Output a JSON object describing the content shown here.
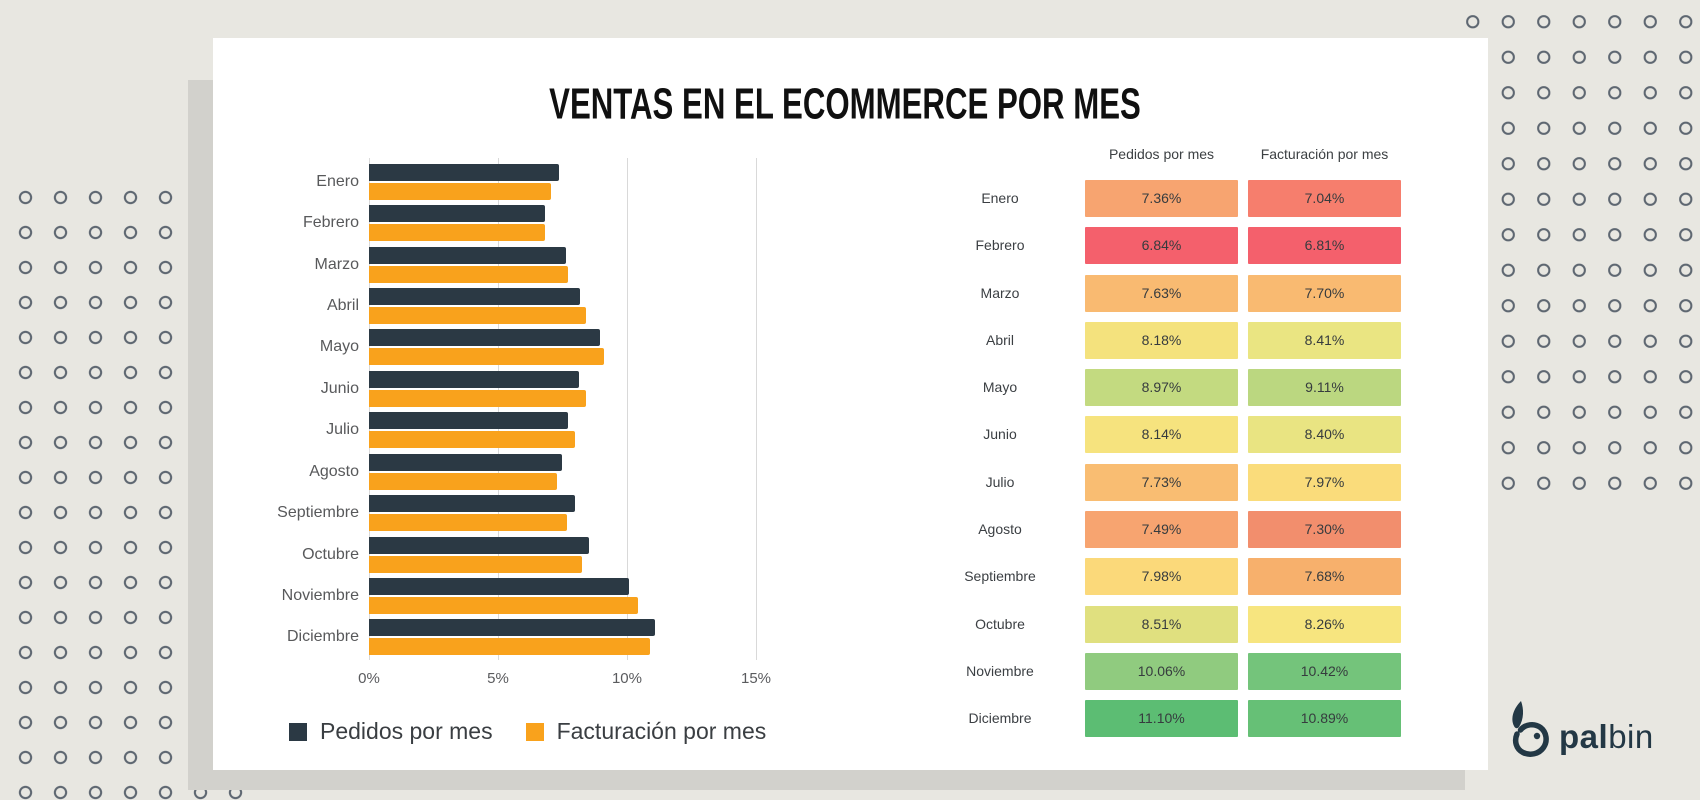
{
  "chart_data": {
    "type": "bar",
    "orientation": "horizontal",
    "title": "VENTAS EN EL ECOMMERCE POR MES",
    "categories": [
      "Enero",
      "Febrero",
      "Marzo",
      "Abril",
      "Mayo",
      "Junio",
      "Julio",
      "Agosto",
      "Septiembre",
      "Octubre",
      "Noviembre",
      "Diciembre"
    ],
    "series": [
      {
        "name": "Pedidos por mes",
        "color": "#2B3944",
        "values": [
          7.36,
          6.84,
          7.63,
          8.18,
          8.97,
          8.14,
          7.73,
          7.49,
          7.98,
          8.51,
          10.06,
          11.1
        ]
      },
      {
        "name": "Facturación por mes",
        "color": "#F9A21C",
        "values": [
          7.04,
          6.81,
          7.7,
          8.41,
          9.11,
          8.4,
          7.97,
          7.3,
          7.68,
          8.26,
          10.42,
          10.89
        ]
      }
    ],
    "x_ticks": [
      "0%",
      "5%",
      "10%",
      "15%"
    ],
    "xlim": [
      0,
      15
    ],
    "grid": true,
    "legend_position": "bottom-left"
  },
  "table": {
    "columns": [
      "Pedidos por mes",
      "Facturación por mes"
    ],
    "rows": [
      {
        "month": "Enero",
        "pedidos": "7.36%",
        "pedidos_color": "#F7A470",
        "facturacion": "7.04%",
        "facturacion_color": "#F67E6D"
      },
      {
        "month": "Febrero",
        "pedidos": "6.84%",
        "pedidos_color": "#F4606C",
        "facturacion": "6.81%",
        "facturacion_color": "#F4606C"
      },
      {
        "month": "Marzo",
        "pedidos": "7.63%",
        "pedidos_color": "#F9BA71",
        "facturacion": "7.70%",
        "facturacion_color": "#F9BA71"
      },
      {
        "month": "Abril",
        "pedidos": "8.18%",
        "pedidos_color": "#F4E27D",
        "facturacion": "8.41%",
        "facturacion_color": "#EAE582"
      },
      {
        "month": "Mayo",
        "pedidos": "8.97%",
        "pedidos_color": "#C3DA80",
        "facturacion": "9.11%",
        "facturacion_color": "#BBD780"
      },
      {
        "month": "Junio",
        "pedidos": "8.14%",
        "pedidos_color": "#F6E37E",
        "facturacion": "8.40%",
        "facturacion_color": "#E9E482"
      },
      {
        "month": "Julio",
        "pedidos": "7.73%",
        "pedidos_color": "#F9BD72",
        "facturacion": "7.97%",
        "facturacion_color": "#FADC7B"
      },
      {
        "month": "Agosto",
        "pedidos": "7.49%",
        "pedidos_color": "#F7A470",
        "facturacion": "7.30%",
        "facturacion_color": "#F28E6D"
      },
      {
        "month": "Septiembre",
        "pedidos": "7.98%",
        "pedidos_color": "#FBD97A",
        "facturacion": "7.68%",
        "facturacion_color": "#F7B06C"
      },
      {
        "month": "Octubre",
        "pedidos": "8.51%",
        "pedidos_color": "#E0E07F",
        "facturacion": "8.26%",
        "facturacion_color": "#F7E57F"
      },
      {
        "month": "Noviembre",
        "pedidos": "10.06%",
        "pedidos_color": "#90CB7F",
        "facturacion": "10.42%",
        "facturacion_color": "#74C47B"
      },
      {
        "month": "Diciembre",
        "pedidos": "11.10%",
        "pedidos_color": "#5CBD73",
        "facturacion": "10.89%",
        "facturacion_color": "#66C076"
      }
    ]
  },
  "brand": {
    "name": "palbin",
    "text_bold": "pal",
    "text_light": "bin",
    "color": "#233845"
  },
  "colors": {
    "background": "#E8E7E1",
    "card": "#FFFFFF",
    "shadow": "#D2D1CC",
    "dots": "#5E6771",
    "grid_line": "#D9D9D9"
  }
}
